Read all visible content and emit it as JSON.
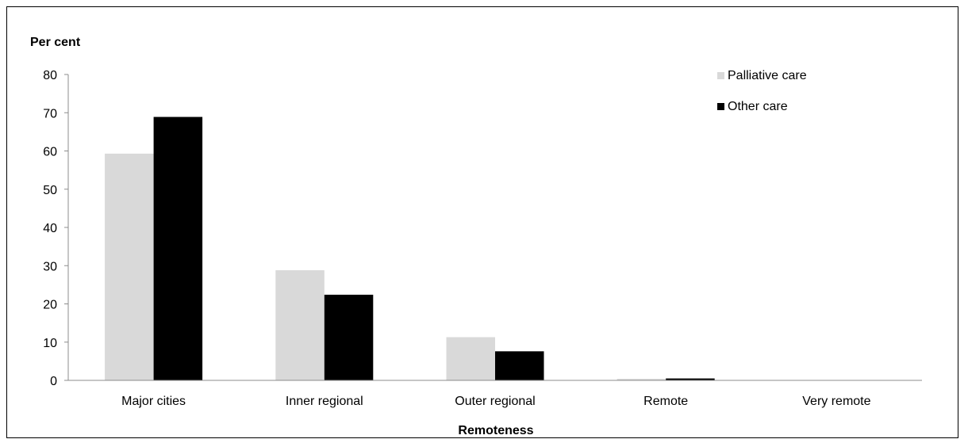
{
  "chart_data": {
    "type": "bar",
    "ylabel": "Per cent",
    "xlabel": "Remoteness",
    "categories": [
      "Major cities",
      "Inner regional",
      "Outer regional",
      "Remote",
      "Very remote"
    ],
    "series": [
      {
        "name": "Palliative care",
        "color": "#d9d9d9",
        "values": [
          59.3,
          28.8,
          11.3,
          0.4,
          0.1
        ]
      },
      {
        "name": "Other care",
        "color": "#000000",
        "values": [
          68.9,
          22.4,
          7.6,
          0.5,
          0.1
        ]
      }
    ],
    "ylim": [
      0,
      80
    ],
    "yticks": [
      "0",
      "10",
      "20",
      "30",
      "40",
      "50",
      "60",
      "70",
      "80"
    ],
    "grid": false,
    "legend_position": "top-right"
  }
}
